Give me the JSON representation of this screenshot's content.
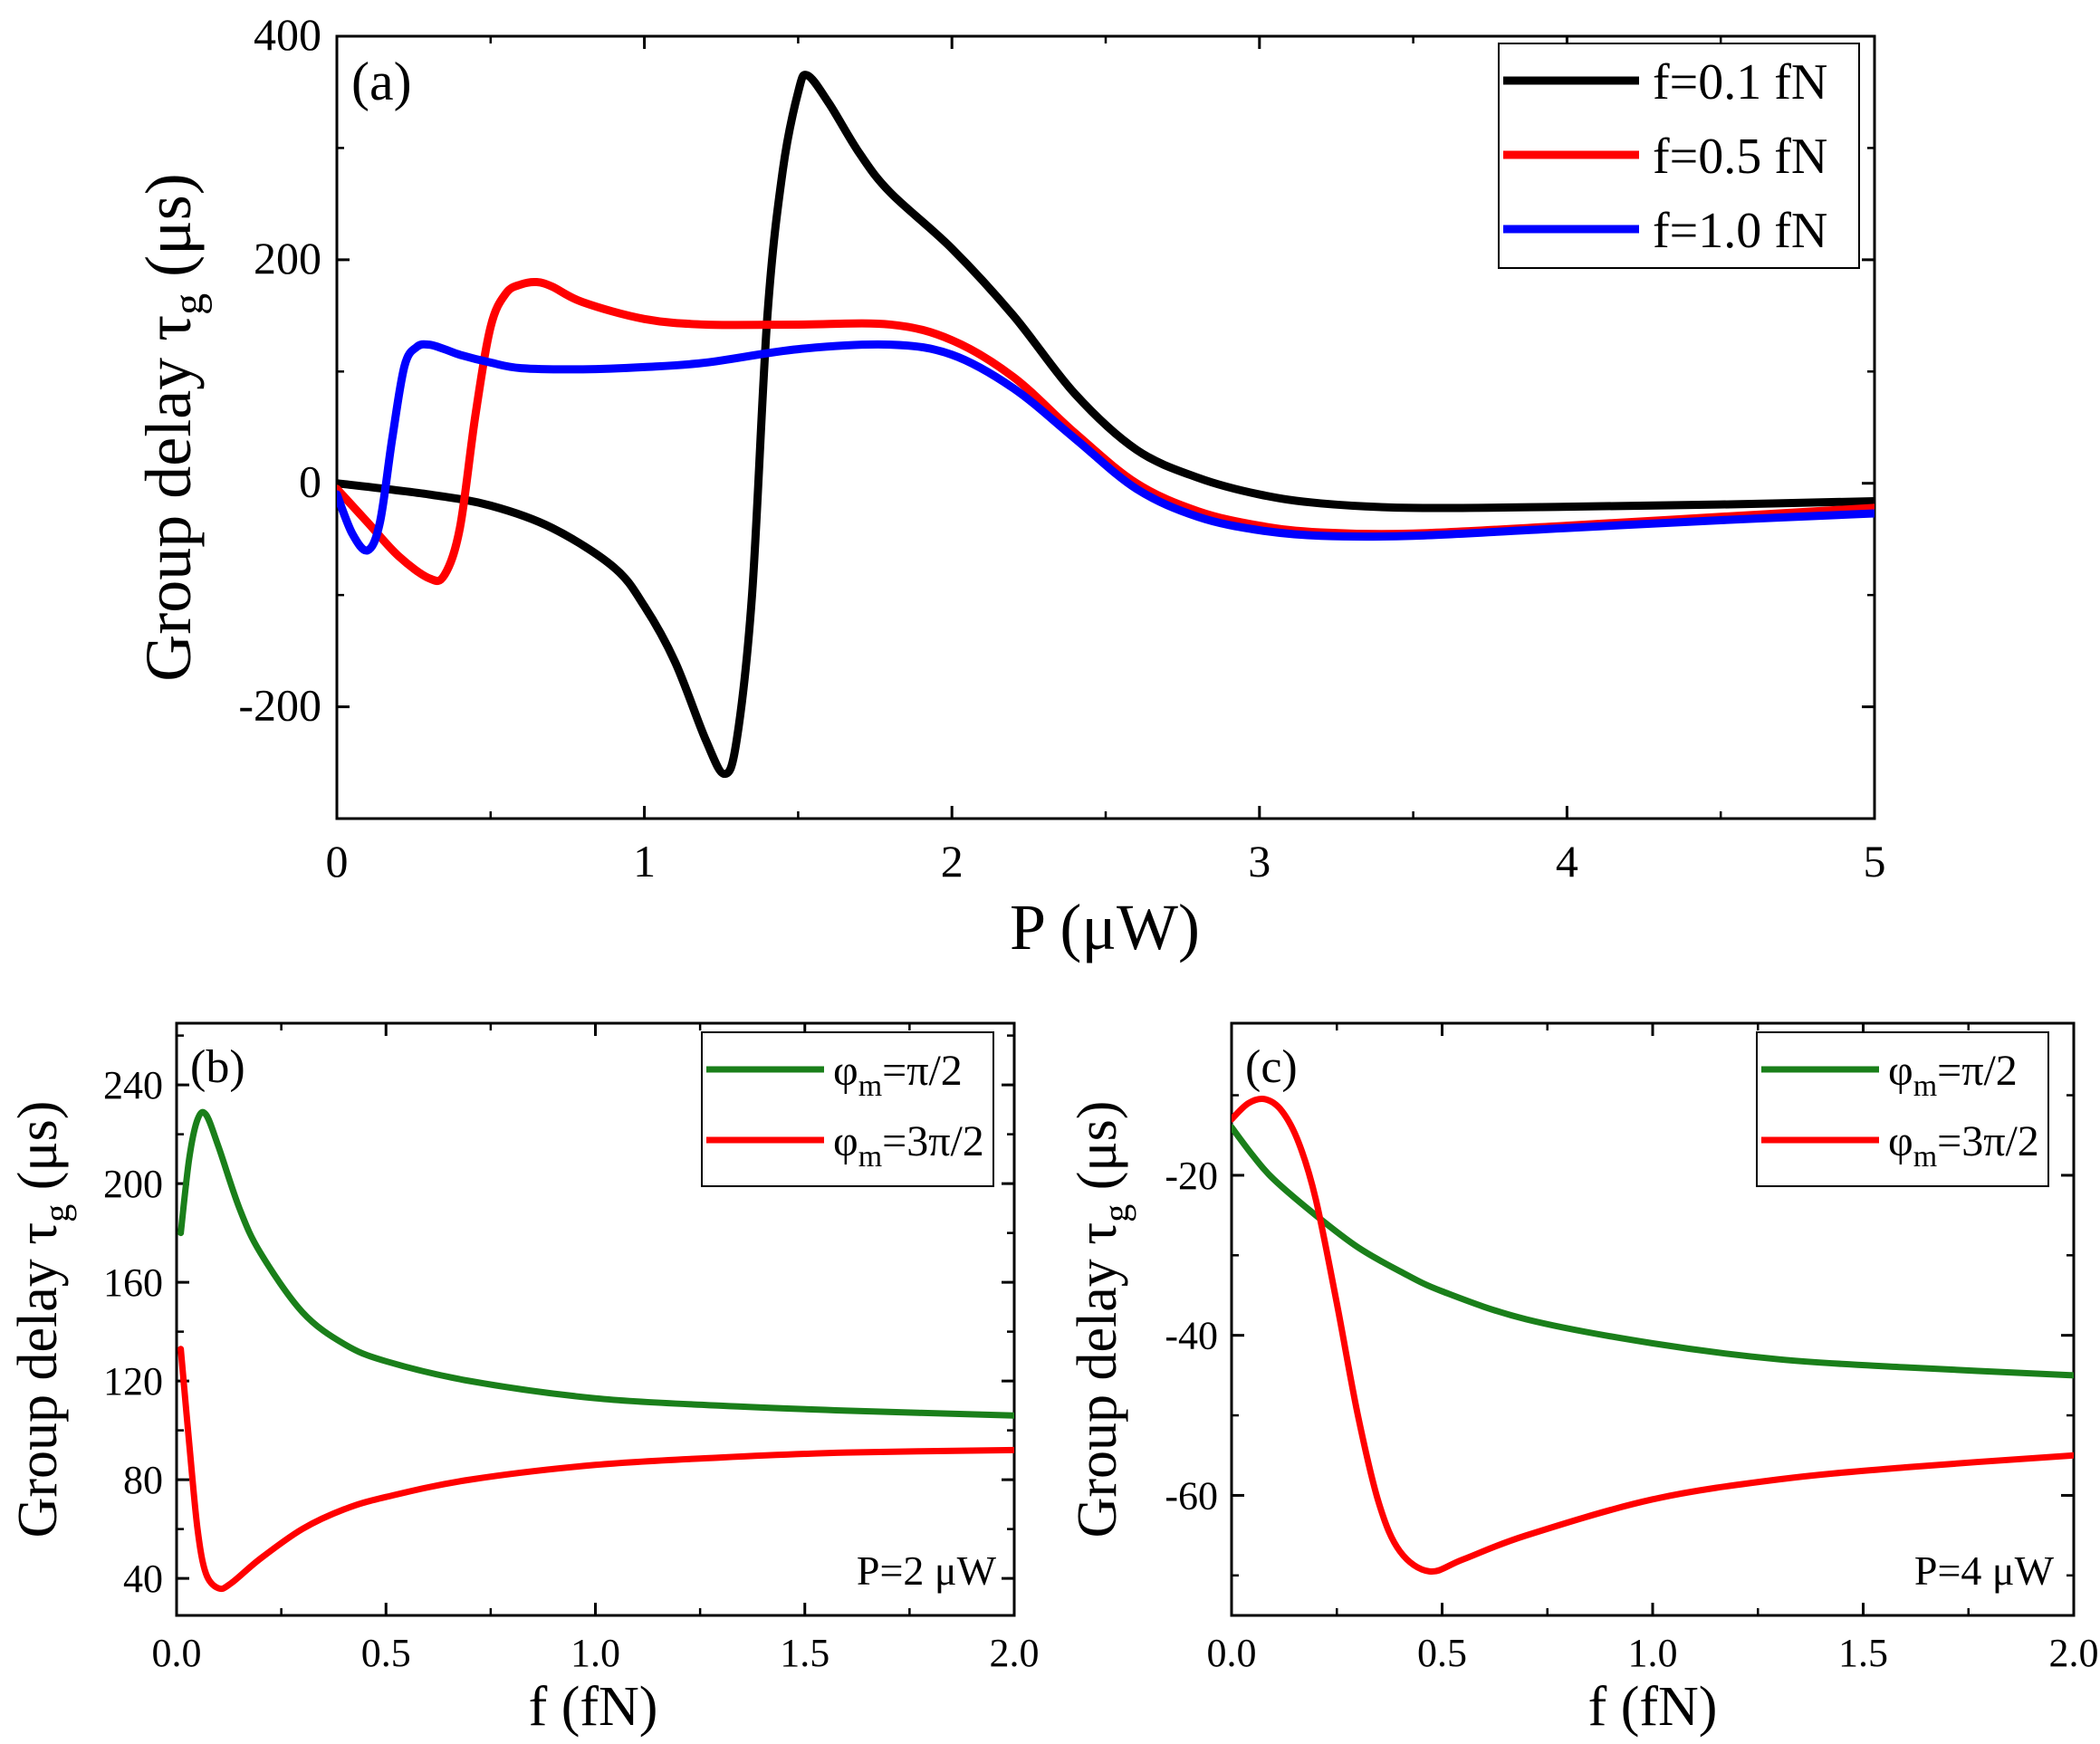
{
  "chart_data": [
    {
      "panel": "(a)",
      "type": "line",
      "xlabel": "P (μW)",
      "ylabel": "Group delay τ",
      "ylabel_sub": "g",
      "ylabel_unit": " (μs)",
      "xlim": [
        0,
        5
      ],
      "ylim": [
        -300,
        400
      ],
      "xticks": [
        0,
        1,
        2,
        3,
        4,
        5
      ],
      "yticks": [
        -200,
        0,
        200,
        400
      ],
      "legend_position": "top-right",
      "series": [
        {
          "name": "f=0.1 fN",
          "color": "#000000",
          "x": [
            0,
            0.3,
            0.5,
            0.7,
            0.9,
            1.0,
            1.1,
            1.2,
            1.26,
            1.3,
            1.35,
            1.4,
            1.45,
            1.5,
            1.53,
            1.6,
            1.7,
            1.8,
            2.0,
            2.2,
            2.4,
            2.6,
            2.8,
            3.0,
            3.2,
            3.5,
            4.0,
            4.5,
            5.0
          ],
          "y": [
            0,
            -10,
            -20,
            -40,
            -75,
            -110,
            -160,
            -230,
            -260,
            -230,
            -100,
            150,
            280,
            350,
            365,
            340,
            295,
            260,
            210,
            150,
            80,
            30,
            5,
            -10,
            -18,
            -22,
            -21,
            -19,
            -16
          ]
        },
        {
          "name": "f=0.5 fN",
          "color": "#ff0000",
          "x": [
            0,
            0.1,
            0.2,
            0.3,
            0.35,
            0.4,
            0.45,
            0.5,
            0.55,
            0.6,
            0.65,
            0.7,
            0.8,
            1.0,
            1.2,
            1.5,
            1.8,
            2.0,
            2.2,
            2.4,
            2.6,
            2.8,
            3.0,
            3.2,
            3.5,
            4.0,
            4.5,
            5.0
          ],
          "y": [
            -5,
            -35,
            -65,
            -85,
            -82,
            -40,
            60,
            140,
            170,
            178,
            180,
            176,
            162,
            147,
            142,
            142,
            142,
            128,
            95,
            45,
            0,
            -25,
            -38,
            -44,
            -45,
            -38,
            -30,
            -22
          ]
        },
        {
          "name": "f=1.0 fN",
          "color": "#0000ff",
          "x": [
            0,
            0.05,
            0.1,
            0.14,
            0.18,
            0.22,
            0.26,
            0.3,
            0.35,
            0.4,
            0.5,
            0.6,
            0.8,
            1.0,
            1.2,
            1.5,
            1.8,
            2.0,
            2.2,
            2.4,
            2.6,
            2.8,
            3.0,
            3.2,
            3.5,
            4.0,
            4.5,
            5.0
          ],
          "y": [
            -10,
            -45,
            -60,
            -35,
            40,
            105,
            122,
            124,
            120,
            115,
            108,
            103,
            102,
            104,
            108,
            120,
            124,
            115,
            85,
            40,
            -5,
            -30,
            -42,
            -47,
            -47,
            -40,
            -33,
            -27
          ]
        }
      ]
    },
    {
      "panel": "(b)",
      "type": "line",
      "xlabel": "f (fN)",
      "ylabel": "Group delay τ",
      "ylabel_sub": "g",
      "ylabel_unit": " (μs)",
      "xlim": [
        0,
        2.0
      ],
      "ylim": [
        25,
        265
      ],
      "xticks": [
        "0.0",
        "0.5",
        "1.0",
        "1.5",
        "2.0"
      ],
      "yticks": [
        40,
        80,
        120,
        160,
        200,
        240
      ],
      "annotation": "P=2 μW",
      "legend_position": "top-right",
      "series": [
        {
          "name": "φm=π/2",
          "name_main": "φ",
          "name_sub": "m",
          "name_rest": "=π/2",
          "color": "#1a7f1a",
          "x": [
            0.01,
            0.03,
            0.05,
            0.07,
            0.1,
            0.15,
            0.2,
            0.3,
            0.4,
            0.5,
            0.7,
            1.0,
            1.3,
            1.6,
            2.0
          ],
          "y": [
            180,
            210,
            226,
            228,
            215,
            190,
            172,
            148,
            135,
            128,
            120,
            113,
            110,
            108,
            106
          ]
        },
        {
          "name": "φm=3π/2",
          "name_main": "φ",
          "name_sub": "m",
          "name_rest": "=3π/2",
          "color": "#ff0000",
          "x": [
            0.01,
            0.03,
            0.05,
            0.07,
            0.1,
            0.13,
            0.2,
            0.3,
            0.4,
            0.5,
            0.7,
            1.0,
            1.3,
            1.6,
            2.0
          ],
          "y": [
            133,
            95,
            60,
            42,
            36,
            38,
            48,
            60,
            68,
            73,
            80,
            86,
            89,
            91,
            92
          ]
        }
      ]
    },
    {
      "panel": "(c)",
      "type": "line",
      "xlabel": "f (fN)",
      "ylabel": "Group delay τ",
      "ylabel_sub": "g",
      "ylabel_unit": " (μs)",
      "xlim": [
        0,
        2.0
      ],
      "ylim": [
        -75,
        -1
      ],
      "xticks": [
        "0.0",
        "0.5",
        "1.0",
        "1.5",
        "2.0"
      ],
      "yticks": [
        -60,
        -40,
        -20
      ],
      "annotation": "P=4 μW",
      "legend_position": "top-right",
      "series": [
        {
          "name": "φm=π/2",
          "name_main": "φ",
          "name_sub": "m",
          "name_rest": "=π/2",
          "color": "#1a7f1a",
          "x": [
            0,
            0.05,
            0.1,
            0.2,
            0.3,
            0.4,
            0.5,
            0.7,
            1.0,
            1.3,
            1.6,
            2.0
          ],
          "y": [
            -14,
            -17.5,
            -20.5,
            -25,
            -29,
            -32,
            -34.5,
            -38,
            -41,
            -43,
            -44,
            -45
          ]
        },
        {
          "name": "φm=3π/2",
          "name_main": "φ",
          "name_sub": "m",
          "name_rest": "=3π/2",
          "color": "#ff0000",
          "x": [
            0,
            0.04,
            0.08,
            0.12,
            0.16,
            0.2,
            0.25,
            0.3,
            0.35,
            0.4,
            0.47,
            0.55,
            0.7,
            1.0,
            1.3,
            1.6,
            2.0
          ],
          "y": [
            -13,
            -11,
            -10.5,
            -12,
            -16,
            -23,
            -36,
            -50,
            -61,
            -67,
            -69.5,
            -68,
            -65,
            -60.5,
            -58,
            -56.5,
            -55
          ]
        }
      ]
    }
  ]
}
